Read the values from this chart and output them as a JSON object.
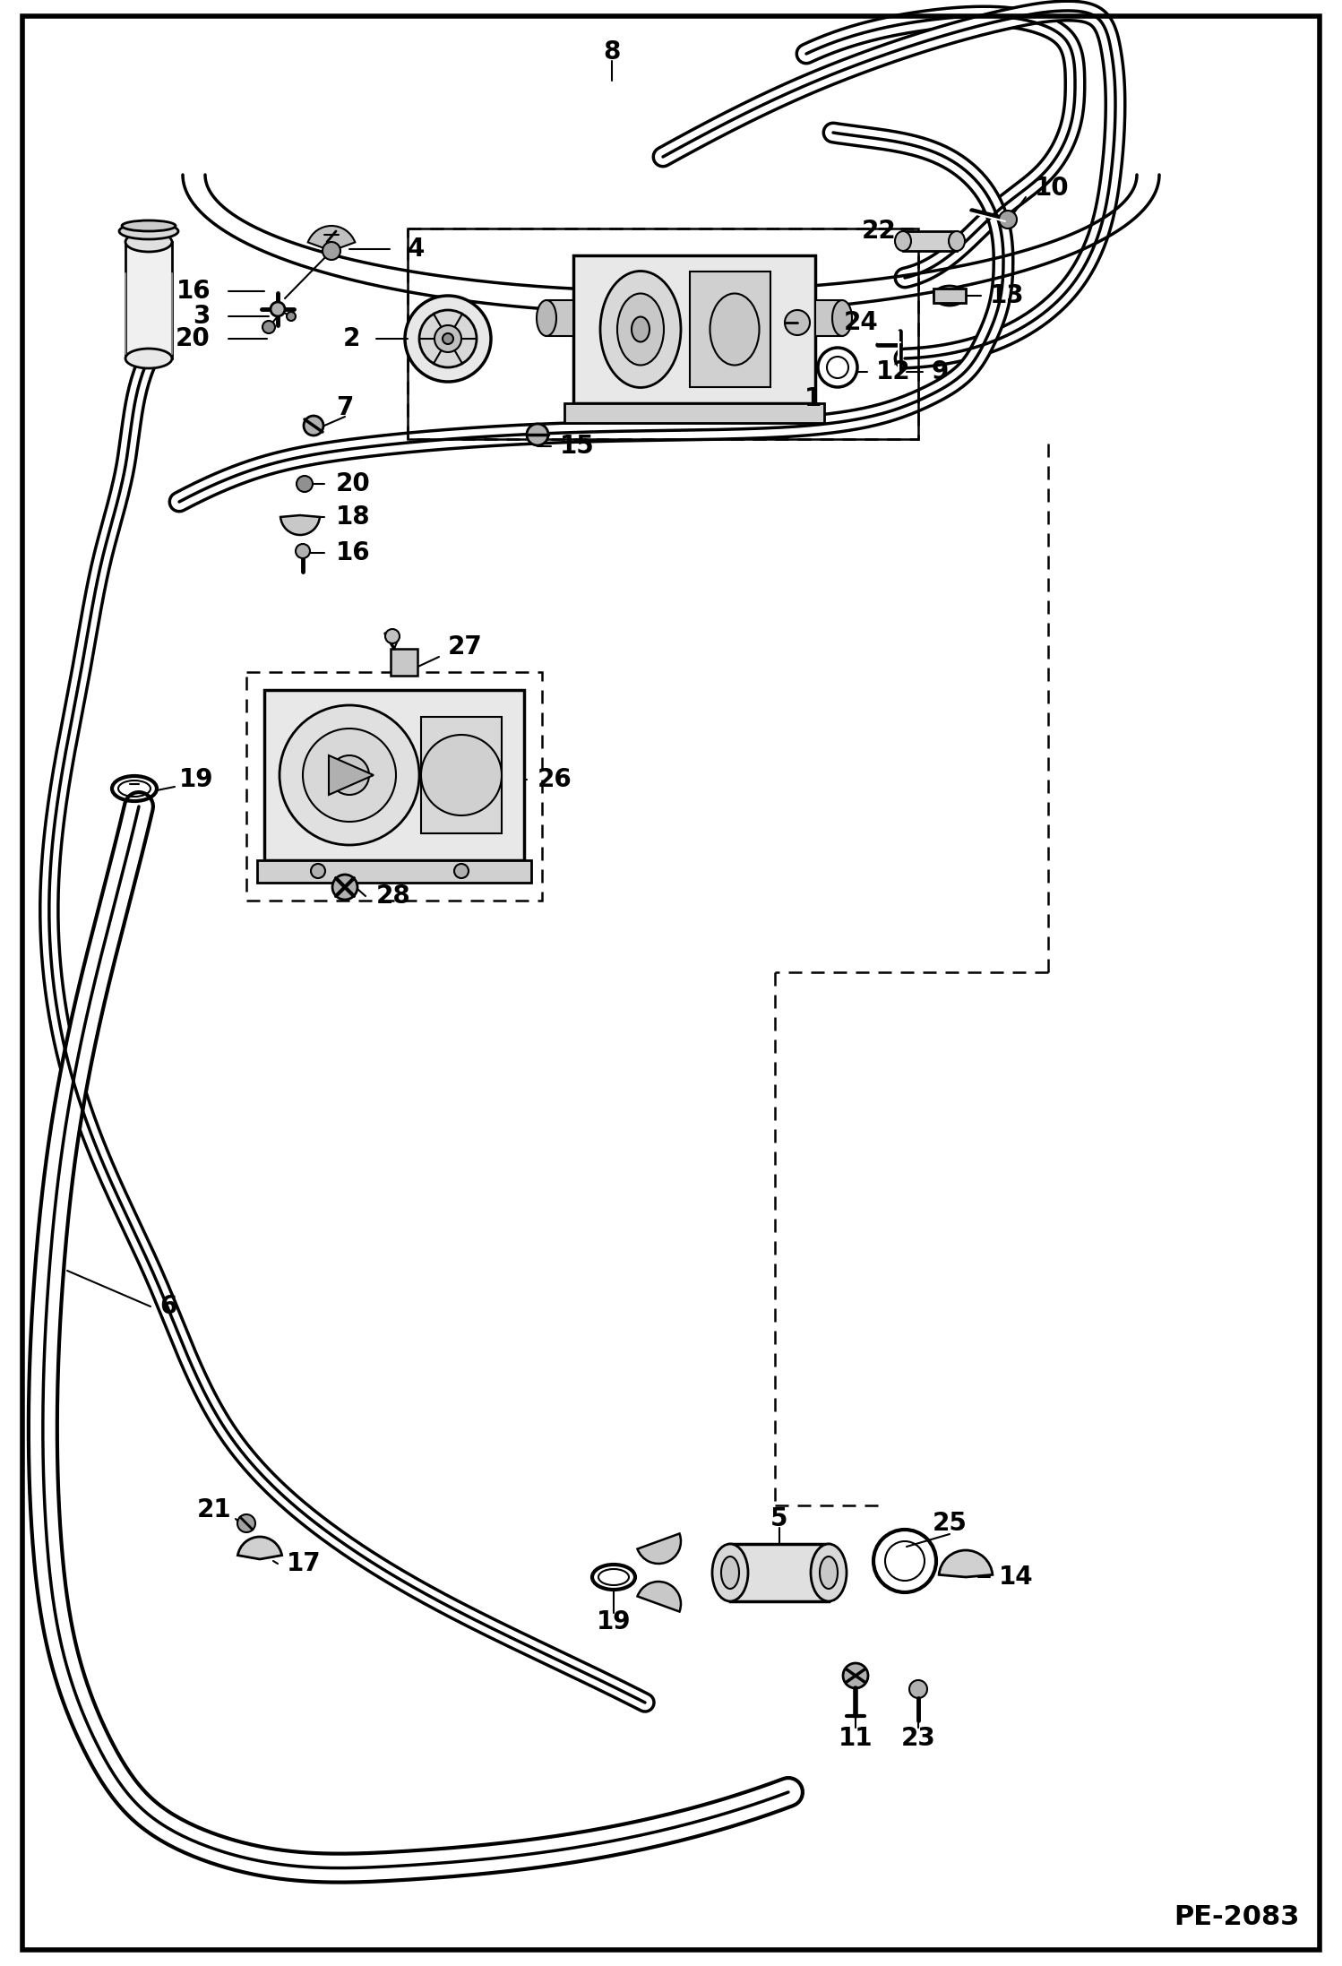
{
  "fig_width": 14.98,
  "fig_height": 21.94,
  "dpi": 100,
  "bg_color": "#ffffff",
  "line_color": "#000000",
  "text_color": "#000000",
  "page_code": "PE-2083"
}
